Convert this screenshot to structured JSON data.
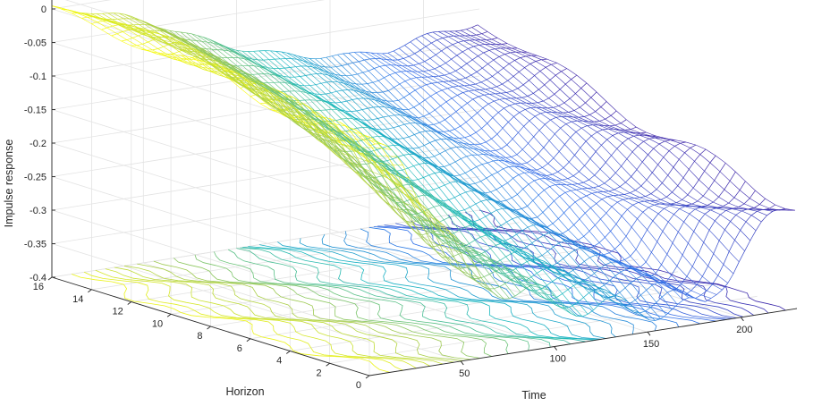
{
  "chart_data": {
    "type": "mesh3d-with-contour",
    "xlabel": "Time",
    "ylabel": "Horizon",
    "zlabel": "Impulse response",
    "x_ticks": [
      "50",
      "100",
      "150",
      "200"
    ],
    "y_ticks": [
      "0",
      "2",
      "4",
      "6",
      "8",
      "10",
      "12",
      "14",
      "16"
    ],
    "z_ticks": [
      "0",
      "-0.05",
      "-0.1",
      "-0.15",
      "-0.2",
      "-0.25",
      "-0.3",
      "-0.35",
      "-0.4"
    ],
    "xlim": [
      1,
      230
    ],
    "ylim": [
      0,
      16
    ],
    "zlim": [
      -0.4,
      0.02
    ],
    "grid": true,
    "colormap": "parula",
    "series": [
      {
        "time": [
          1,
          20,
          40,
          60,
          80,
          100,
          120,
          140,
          160,
          180,
          200,
          230
        ],
        "profiles": [
          {
            "horizon": 0,
            "values": [
              -0.06,
              -0.1,
              -0.2,
              -0.28,
              -0.31,
              -0.33,
              -0.35,
              -0.36,
              -0.37,
              -0.38,
              -0.3,
              -0.24
            ]
          },
          {
            "horizon": 4,
            "values": [
              -0.04,
              -0.07,
              -0.14,
              -0.22,
              -0.26,
              -0.28,
              -0.3,
              -0.31,
              -0.32,
              -0.31,
              -0.27,
              -0.22
            ]
          },
          {
            "horizon": 8,
            "values": [
              -0.02,
              -0.04,
              -0.09,
              -0.14,
              -0.18,
              -0.21,
              -0.23,
              -0.25,
              -0.26,
              -0.25,
              -0.22,
              -0.19
            ]
          },
          {
            "horizon": 12,
            "values": [
              -0.01,
              -0.02,
              -0.05,
              -0.09,
              -0.12,
              -0.15,
              -0.17,
              -0.19,
              -0.2,
              -0.19,
              -0.17,
              -0.15
            ]
          },
          {
            "horizon": 16,
            "values": [
              0.0,
              -0.01,
              -0.03,
              -0.05,
              -0.08,
              -0.1,
              -0.12,
              -0.13,
              -0.14,
              -0.14,
              -0.13,
              -0.12
            ]
          }
        ]
      }
    ]
  }
}
